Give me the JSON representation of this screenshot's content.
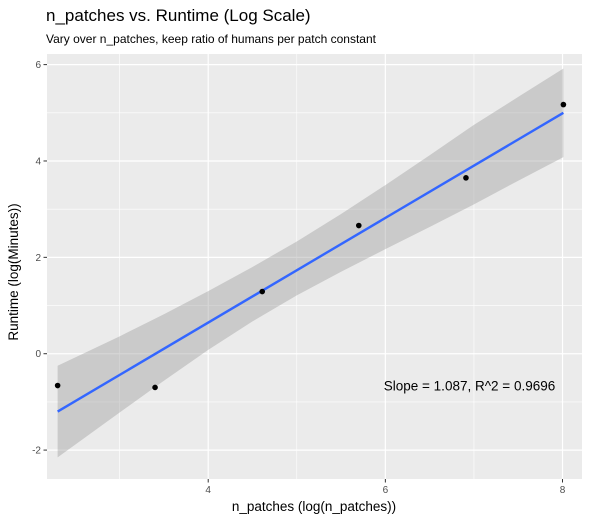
{
  "chart_data": {
    "type": "scatter",
    "title": "n_patches vs. Runtime (Log Scale)",
    "subtitle": "Vary over n_patches, keep ratio of humans per patch constant",
    "xlabel": "n_patches (log(n_patches))",
    "ylabel": "Runtime (log(Minutes))",
    "xlim": [
      2.18,
      8.22
    ],
    "ylim": [
      -2.6,
      6.22
    ],
    "x_ticks": [
      4,
      6,
      8
    ],
    "x_tick_labels": [
      "4",
      "6",
      "8"
    ],
    "y_ticks": [
      -2,
      0,
      2,
      4,
      6
    ],
    "y_tick_labels": [
      "-2",
      "0",
      "2",
      "4",
      "6"
    ],
    "grid": true,
    "points": [
      {
        "x": 2.3,
        "y": -0.66
      },
      {
        "x": 3.4,
        "y": -0.7
      },
      {
        "x": 4.61,
        "y": 1.29
      },
      {
        "x": 5.7,
        "y": 2.66
      },
      {
        "x": 6.91,
        "y": 3.65
      },
      {
        "x": 8.01,
        "y": 5.17
      }
    ],
    "fit_line": {
      "x": [
        2.3,
        8.01
      ],
      "y": [
        -1.2,
        5.0
      ]
    },
    "confidence_band": {
      "x": [
        2.3,
        3.0,
        3.5,
        4.0,
        4.5,
        5.0,
        5.5,
        6.0,
        6.5,
        7.0,
        7.5,
        8.01
      ],
      "upper": [
        -0.25,
        0.36,
        0.82,
        1.3,
        1.8,
        2.33,
        2.9,
        3.5,
        4.12,
        4.75,
        5.33,
        5.92
      ],
      "lower": [
        -2.15,
        -1.22,
        -0.56,
        0.08,
        0.67,
        1.21,
        1.7,
        2.17,
        2.63,
        3.1,
        3.59,
        4.08
      ]
    },
    "colors": {
      "panel": "#ebebeb",
      "grid": "#ffffff",
      "line": "#3366ff",
      "band": "#999999",
      "point": "#000000"
    },
    "annotation": {
      "text": "Slope = 1.087, R^2 = 0.9696",
      "x": 6.95,
      "y": -0.66
    }
  }
}
